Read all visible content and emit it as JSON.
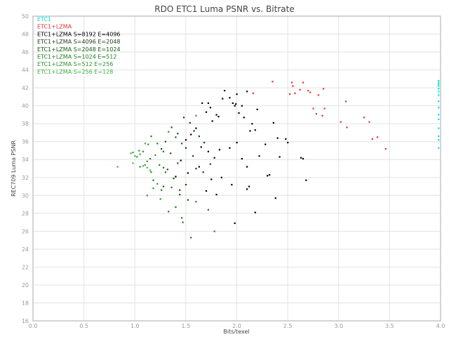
{
  "chart_data": {
    "type": "scatter",
    "title": "RDO ETC1 Luma PSNR vs. Bitrate",
    "xlabel": "Bits/texel",
    "ylabel": "REC709 Luma PSNR",
    "xlim": [
      0.0,
      4.0
    ],
    "ylim": [
      16,
      50
    ],
    "x_ticks": [
      "0.0",
      "0.5",
      "1.0",
      "1.5",
      "2.0",
      "2.5",
      "3.0",
      "3.5",
      "4.0"
    ],
    "y_ticks": [
      "16",
      "18",
      "20",
      "22",
      "24",
      "26",
      "28",
      "30",
      "32",
      "34",
      "36",
      "38",
      "40",
      "42",
      "44",
      "46",
      "48",
      "50"
    ],
    "grid": true,
    "legend_placement": "top-left",
    "series": [
      {
        "name": "ETC1",
        "color": "#00e5e5",
        "points": [
          [
            3.98,
            42.8
          ],
          [
            3.98,
            42.6
          ],
          [
            3.98,
            42.4
          ],
          [
            3.98,
            42.2
          ],
          [
            3.98,
            41.9
          ],
          [
            3.98,
            41.6
          ],
          [
            3.98,
            41.2
          ],
          [
            3.98,
            40.5
          ],
          [
            3.98,
            39.8
          ],
          [
            3.98,
            39.0
          ],
          [
            3.98,
            38.5
          ],
          [
            3.98,
            37.5
          ],
          [
            3.98,
            36.6
          ],
          [
            3.98,
            36.2
          ],
          [
            3.98,
            35.3
          ]
        ]
      },
      {
        "name": "ETC1+LZMA",
        "color": "#e03030",
        "points": [
          [
            2.35,
            42.7
          ],
          [
            2.52,
            41.3
          ],
          [
            2.54,
            42.6
          ],
          [
            2.57,
            41.4
          ],
          [
            2.55,
            42.2
          ],
          [
            2.62,
            41.8
          ],
          [
            2.65,
            42.6
          ],
          [
            2.7,
            41.7
          ],
          [
            2.78,
            39.1
          ],
          [
            2.8,
            41.2
          ],
          [
            2.84,
            38.9
          ],
          [
            2.86,
            39.7
          ],
          [
            2.72,
            41.5
          ],
          [
            2.75,
            39.7
          ],
          [
            2.85,
            41.9
          ],
          [
            3.02,
            38.2
          ],
          [
            3.07,
            40.5
          ],
          [
            3.08,
            37.6
          ],
          [
            3.25,
            38.7
          ],
          [
            3.3,
            38.2
          ],
          [
            3.33,
            36.3
          ],
          [
            3.38,
            36.5
          ],
          [
            3.46,
            35.2
          ],
          [
            2.16,
            41.4
          ]
        ]
      },
      {
        "name": "ETC1+LZMA S=8192 E=4096",
        "color": "#000000",
        "points": [
          [
            1.66,
            40.3
          ],
          [
            1.72,
            40.3
          ],
          [
            1.74,
            39.8
          ],
          [
            1.7,
            39.3
          ],
          [
            1.8,
            39.0
          ],
          [
            1.86,
            40.8
          ],
          [
            1.88,
            41.7
          ],
          [
            1.93,
            40.9
          ],
          [
            1.96,
            40.3
          ],
          [
            1.98,
            40.0
          ],
          [
            2.0,
            41.3
          ],
          [
            2.02,
            39.2
          ],
          [
            1.99,
            40.2
          ],
          [
            2.05,
            40.0
          ],
          [
            2.07,
            38.7
          ],
          [
            2.1,
            41.6
          ],
          [
            2.13,
            37.2
          ],
          [
            2.15,
            38.0
          ],
          [
            2.2,
            39.6
          ],
          [
            2.18,
            37.3
          ],
          [
            1.82,
            38.8
          ],
          [
            1.76,
            38.3
          ],
          [
            1.6,
            37.5
          ],
          [
            1.55,
            36.8
          ],
          [
            1.5,
            36.2
          ],
          [
            1.65,
            35.4
          ],
          [
            1.72,
            34.9
          ],
          [
            1.78,
            34.2
          ],
          [
            1.83,
            35.1
          ],
          [
            1.93,
            35.3
          ],
          [
            2.0,
            35.9
          ],
          [
            2.05,
            34.1
          ],
          [
            2.1,
            33.2
          ],
          [
            2.22,
            34.4
          ],
          [
            2.28,
            35.7
          ],
          [
            2.32,
            32.3
          ],
          [
            2.36,
            38.1
          ],
          [
            2.4,
            36.4
          ],
          [
            2.48,
            36.3
          ],
          [
            2.5,
            35.9
          ],
          [
            2.63,
            34.2
          ],
          [
            2.65,
            34.1
          ],
          [
            2.68,
            31.7
          ],
          [
            2.42,
            34.3
          ],
          [
            2.3,
            32.2
          ],
          [
            2.18,
            28.1
          ],
          [
            2.12,
            31.0
          ],
          [
            2.1,
            30.7
          ],
          [
            1.95,
            31.2
          ],
          [
            1.85,
            32.0
          ],
          [
            1.75,
            31.8
          ],
          [
            1.7,
            30.5
          ],
          [
            1.8,
            30.1
          ],
          [
            1.63,
            33.2
          ],
          [
            1.52,
            32.5
          ],
          [
            1.45,
            33.9
          ],
          [
            1.4,
            32.1
          ],
          [
            1.98,
            26.9
          ],
          [
            2.38,
            29.7
          ]
        ]
      },
      {
        "name": "ETC1+LZMA S=4096 E=2048",
        "color": "#1a3d1a",
        "points": [
          [
            1.48,
            38.7
          ],
          [
            1.54,
            38.1
          ],
          [
            1.58,
            37.2
          ],
          [
            1.63,
            36.6
          ],
          [
            1.68,
            35.9
          ],
          [
            1.5,
            35.3
          ],
          [
            1.57,
            34.4
          ],
          [
            1.42,
            36.9
          ],
          [
            1.6,
            33.0
          ],
          [
            1.67,
            32.6
          ],
          [
            1.74,
            33.5
          ],
          [
            1.5,
            31.2
          ],
          [
            1.44,
            30.6
          ]
        ]
      },
      {
        "name": "ETC1+LZMA S=2048 E=1024",
        "color": "#145c14",
        "points": [
          [
            1.36,
            37.6
          ],
          [
            1.4,
            36.5
          ],
          [
            1.46,
            35.8
          ],
          [
            1.3,
            36.0
          ],
          [
            1.26,
            35.2
          ],
          [
            1.35,
            34.7
          ],
          [
            1.42,
            33.6
          ],
          [
            1.32,
            32.9
          ],
          [
            1.38,
            31.9
          ],
          [
            1.28,
            31.0
          ],
          [
            1.44,
            30.1
          ],
          [
            1.52,
            29.5
          ]
        ]
      },
      {
        "name": "ETC1+LZMA S=1024 E=512",
        "color": "#1e7a1e",
        "points": [
          [
            1.16,
            36.6
          ],
          [
            1.22,
            35.8
          ],
          [
            1.28,
            34.9
          ],
          [
            1.15,
            34.1
          ],
          [
            1.24,
            33.4
          ],
          [
            1.3,
            32.6
          ],
          [
            1.18,
            31.7
          ],
          [
            1.26,
            30.6
          ],
          [
            1.33,
            28.2
          ],
          [
            1.4,
            28.7
          ],
          [
            1.46,
            27.5
          ],
          [
            1.47,
            27.0
          ],
          [
            1.55,
            25.3
          ],
          [
            1.78,
            26.0
          ],
          [
            1.6,
            29.3
          ],
          [
            1.72,
            28.4
          ],
          [
            1.28,
            33.1
          ],
          [
            1.36,
            30.9
          ]
        ]
      },
      {
        "name": "ETC1+LZMA S=512 E=256",
        "color": "#28962a",
        "points": [
          [
            0.98,
            34.8
          ],
          [
            1.02,
            34.3
          ],
          [
            1.05,
            33.2
          ],
          [
            1.1,
            33.4
          ],
          [
            1.13,
            35.7
          ],
          [
            1.08,
            34.9
          ],
          [
            1.04,
            35.0
          ],
          [
            1.2,
            34.5
          ],
          [
            1.12,
            33.8
          ],
          [
            1.16,
            32.6
          ],
          [
            1.22,
            31.3
          ],
          [
            1.18,
            30.8
          ],
          [
            1.25,
            29.6
          ],
          [
            1.12,
            30.0
          ],
          [
            1.33,
            37.1
          ],
          [
            1.6,
            38.9
          ]
        ]
      },
      {
        "name": "ETC1+LZMA S=256 E=128",
        "color": "#3cb03c",
        "points": [
          [
            0.83,
            33.2
          ],
          [
            0.96,
            34.7
          ],
          [
            1.0,
            34.4
          ],
          [
            0.98,
            33.6
          ],
          [
            1.05,
            34.6
          ],
          [
            1.08,
            33.3
          ],
          [
            1.12,
            33.1
          ],
          [
            1.15,
            32.8
          ],
          [
            1.1,
            35.8
          ]
        ]
      }
    ]
  }
}
